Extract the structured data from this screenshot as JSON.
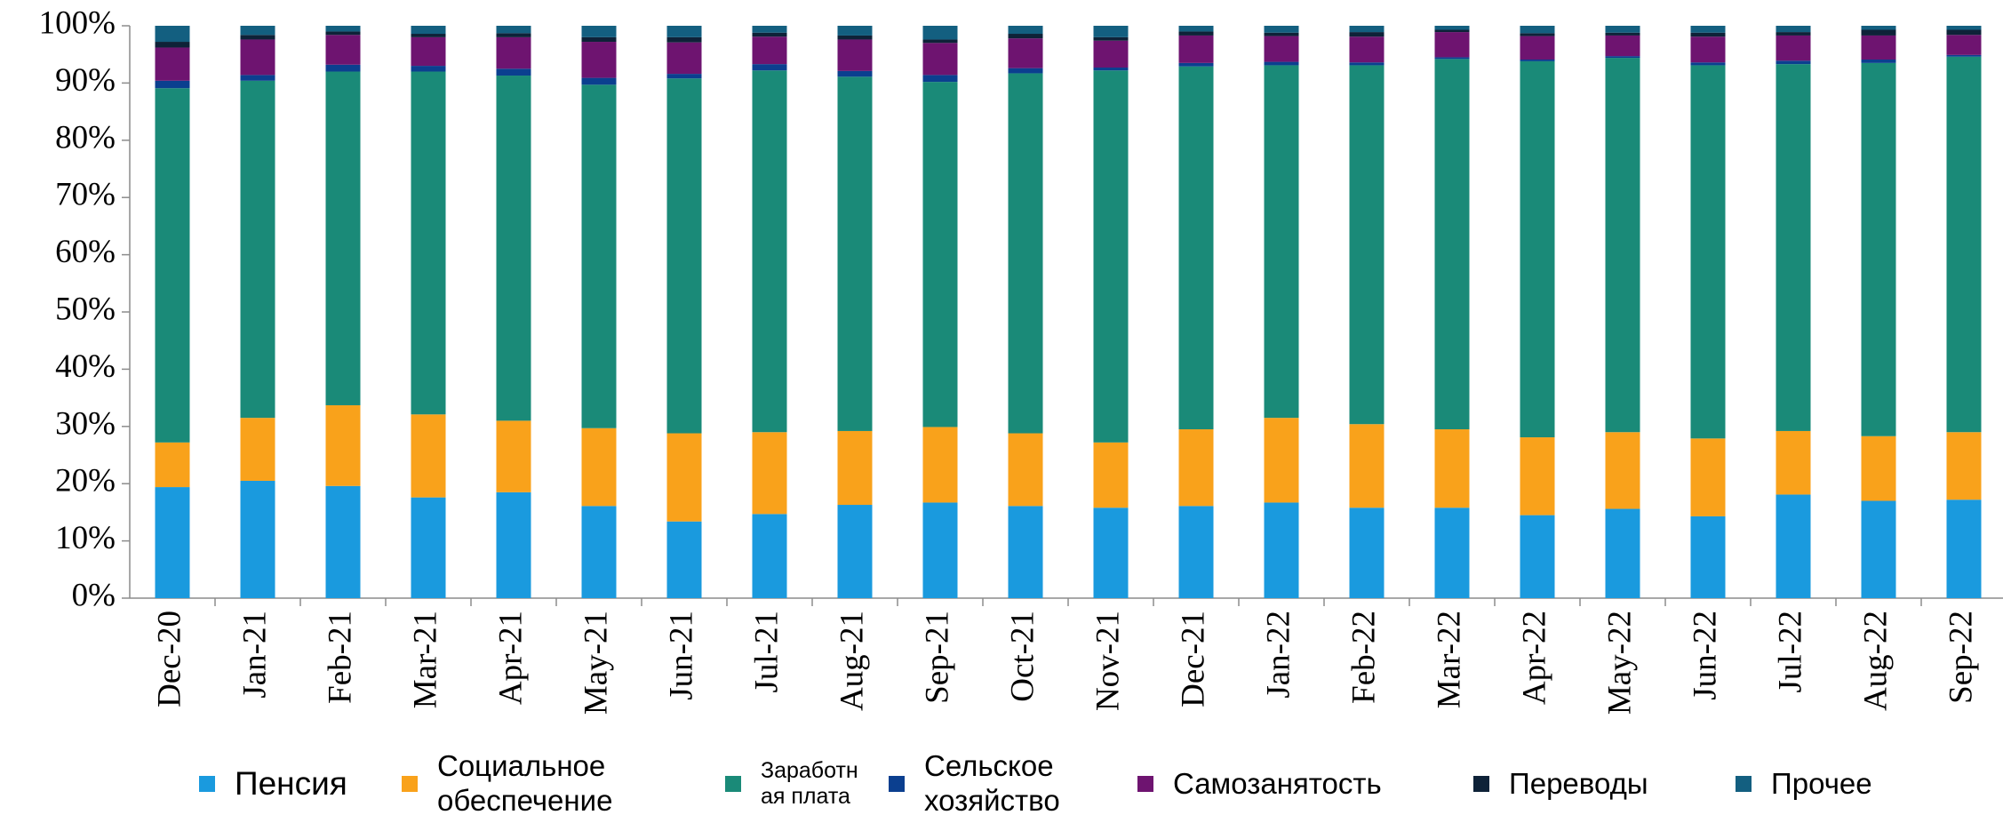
{
  "chart_data": {
    "type": "stacked_bar",
    "categories": [
      "Dec-20",
      "Jan-21",
      "Feb-21",
      "Mar-21",
      "Apr-21",
      "May-21",
      "Jun-21",
      "Jul-21",
      "Aug-21",
      "Sep-21",
      "Oct-21",
      "Nov-21",
      "Dec-21",
      "Jan-22",
      "Feb-22",
      "Mar-22",
      "Apr-22",
      "May-22",
      "Jun-22",
      "Jul-22",
      "Aug-22",
      "Sep-22"
    ],
    "series": [
      {
        "name": "Пенсия",
        "color": "#1a9ade",
        "values": [
          19.4,
          20.5,
          19.6,
          17.6,
          18.5,
          16.1,
          13.4,
          14.7,
          16.3,
          16.7,
          16.1,
          15.8,
          16.1,
          16.7,
          15.8,
          15.8,
          14.5,
          15.6,
          14.3,
          18.1,
          17.0,
          17.2
        ]
      },
      {
        "name": "Социальное обеспечение",
        "color": "#f9a21b",
        "values": [
          7.8,
          11.0,
          14.1,
          14.5,
          12.5,
          13.6,
          15.4,
          14.3,
          12.9,
          13.2,
          12.7,
          11.4,
          13.4,
          14.8,
          14.6,
          13.7,
          13.6,
          13.4,
          13.6,
          11.1,
          11.3,
          11.8
        ]
      },
      {
        "name": "Заработная плата",
        "color": "#1a8a78",
        "values": [
          61.9,
          58.9,
          58.3,
          59.9,
          60.3,
          60.0,
          62.0,
          63.2,
          61.9,
          60.3,
          62.9,
          65.0,
          63.4,
          61.6,
          62.7,
          64.7,
          65.7,
          65.4,
          65.2,
          64.1,
          65.2,
          65.6
        ]
      },
      {
        "name": "Сельское хозяйство",
        "color": "#0b3f8f",
        "values": [
          1.3,
          1.0,
          1.2,
          1.0,
          1.2,
          1.2,
          0.8,
          1.1,
          1.0,
          1.2,
          0.9,
          0.5,
          0.6,
          0.6,
          0.5,
          0.3,
          0.3,
          0.3,
          0.5,
          0.6,
          0.6,
          0.3
        ]
      },
      {
        "name": "Самозанятость",
        "color": "#6e1470",
        "values": [
          5.8,
          6.2,
          5.2,
          5.0,
          5.5,
          6.3,
          5.5,
          4.8,
          5.5,
          5.6,
          5.2,
          4.7,
          4.8,
          4.5,
          4.5,
          4.4,
          4.1,
          3.6,
          4.5,
          4.4,
          4.2,
          3.5
        ]
      },
      {
        "name": "Переводы",
        "color": "#0e2238",
        "values": [
          1.0,
          0.8,
          0.6,
          0.6,
          0.7,
          0.8,
          0.9,
          0.7,
          0.7,
          0.6,
          0.8,
          0.6,
          0.7,
          0.6,
          0.8,
          0.4,
          0.5,
          0.5,
          0.7,
          0.6,
          1.0,
          0.9
        ]
      },
      {
        "name": "Прочее",
        "color": "#135f80",
        "values": [
          2.8,
          1.6,
          1.0,
          1.4,
          1.3,
          2.0,
          2.0,
          1.2,
          1.7,
          2.4,
          1.4,
          2.0,
          1.0,
          1.2,
          1.1,
          0.7,
          1.3,
          1.2,
          1.2,
          1.1,
          0.7,
          0.7
        ]
      }
    ],
    "ylim": [
      0,
      100
    ],
    "yticks": [
      {
        "value": 0,
        "label": "0%"
      },
      {
        "value": 10,
        "label": "10%"
      },
      {
        "value": 20,
        "label": "20%"
      },
      {
        "value": 30,
        "label": "30%"
      },
      {
        "value": 40,
        "label": "40%"
      },
      {
        "value": 50,
        "label": "50%"
      },
      {
        "value": 60,
        "label": "60%"
      },
      {
        "value": 70,
        "label": "70%"
      },
      {
        "value": 80,
        "label": "80%"
      },
      {
        "value": 90,
        "label": "90%"
      },
      {
        "value": 100,
        "label": "100%"
      }
    ],
    "grid": false
  }
}
